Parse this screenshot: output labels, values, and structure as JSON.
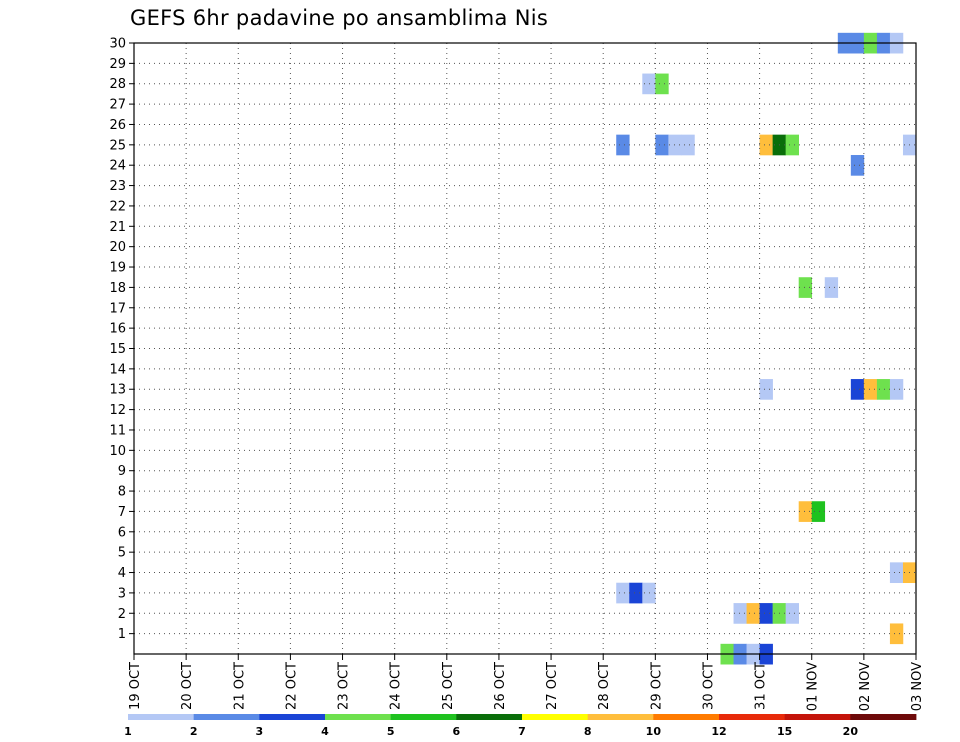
{
  "chart_data": {
    "type": "heatmap",
    "title": "GEFS 6hr padavine po ansamblima Nis",
    "y_ticks": [
      "1",
      "2",
      "3",
      "4",
      "5",
      "6",
      "7",
      "8",
      "9",
      "10",
      "11",
      "12",
      "13",
      "14",
      "15",
      "16",
      "17",
      "18",
      "19",
      "20",
      "21",
      "22",
      "23",
      "24",
      "25",
      "26",
      "27",
      "28",
      "29",
      "30"
    ],
    "x_ticks": [
      "19 OCT",
      "20 OCT",
      "21 OCT",
      "22 OCT",
      "23 OCT",
      "24 OCT",
      "25 OCT",
      "26 OCT",
      "27 OCT",
      "28 OCT",
      "29 OCT",
      "30 OCT",
      "31 OCT",
      "01 NOV",
      "02 NOV",
      "03 NOV"
    ],
    "x_range_days": [
      0,
      15
    ],
    "y_range": [
      0,
      30
    ],
    "grid": "dotted",
    "colors": [
      "#b4c8f5",
      "#5a8ae6",
      "#1a44d6",
      "#6ee14e",
      "#1fc21f",
      "#0a6e0a",
      "#ffff00",
      "#ffbe3c",
      "#ff7b00",
      "#e82a0a",
      "#c4140a",
      "#6e0a0a"
    ],
    "legend_labels": [
      "1",
      "2",
      "3",
      "4",
      "5",
      "6",
      "7",
      "8",
      "10",
      "12",
      "15",
      "20"
    ],
    "cells": [
      {
        "member": 30,
        "day": 13.5,
        "value": 2
      },
      {
        "member": 30,
        "day": 13.75,
        "value": 2
      },
      {
        "member": 30,
        "day": 14.0,
        "value": 4
      },
      {
        "member": 30,
        "day": 14.25,
        "value": 2
      },
      {
        "member": 30,
        "day": 14.5,
        "value": 1
      },
      {
        "member": 28,
        "day": 9.75,
        "value": 1
      },
      {
        "member": 28,
        "day": 10.0,
        "value": 4
      },
      {
        "member": 25,
        "day": 9.25,
        "value": 2
      },
      {
        "member": 25,
        "day": 10.0,
        "value": 2
      },
      {
        "member": 25,
        "day": 10.25,
        "value": 1
      },
      {
        "member": 25,
        "day": 10.5,
        "value": 1
      },
      {
        "member": 25,
        "day": 12.0,
        "value": 8
      },
      {
        "member": 25,
        "day": 12.25,
        "value": 6
      },
      {
        "member": 25,
        "day": 12.5,
        "value": 4
      },
      {
        "member": 25,
        "day": 14.75,
        "value": 1
      },
      {
        "member": 24,
        "day": 13.75,
        "value": 2
      },
      {
        "member": 18,
        "day": 12.75,
        "value": 4
      },
      {
        "member": 18,
        "day": 13.25,
        "value": 1
      },
      {
        "member": 13,
        "day": 12.0,
        "value": 1
      },
      {
        "member": 13,
        "day": 13.75,
        "value": 3
      },
      {
        "member": 13,
        "day": 14.0,
        "value": 8
      },
      {
        "member": 13,
        "day": 14.25,
        "value": 4
      },
      {
        "member": 13,
        "day": 14.5,
        "value": 1
      },
      {
        "member": 7,
        "day": 12.75,
        "value": 8
      },
      {
        "member": 7,
        "day": 13.0,
        "value": 5
      },
      {
        "member": 4,
        "day": 14.5,
        "value": 1
      },
      {
        "member": 4,
        "day": 14.75,
        "value": 8
      },
      {
        "member": 3,
        "day": 9.25,
        "value": 1
      },
      {
        "member": 3,
        "day": 9.5,
        "value": 3
      },
      {
        "member": 3,
        "day": 9.75,
        "value": 1
      },
      {
        "member": 2,
        "day": 11.5,
        "value": 1
      },
      {
        "member": 2,
        "day": 11.75,
        "value": 8
      },
      {
        "member": 2,
        "day": 12.0,
        "value": 3
      },
      {
        "member": 2,
        "day": 12.25,
        "value": 4
      },
      {
        "member": 2,
        "day": 12.5,
        "value": 1
      },
      {
        "member": 1,
        "day": 14.5,
        "value": 8
      },
      {
        "member": 0,
        "day": 11.25,
        "value": 4
      },
      {
        "member": 0,
        "day": 11.5,
        "value": 2
      },
      {
        "member": 0,
        "day": 11.75,
        "value": 1
      },
      {
        "member": 0,
        "day": 12.0,
        "value": 3
      }
    ]
  }
}
